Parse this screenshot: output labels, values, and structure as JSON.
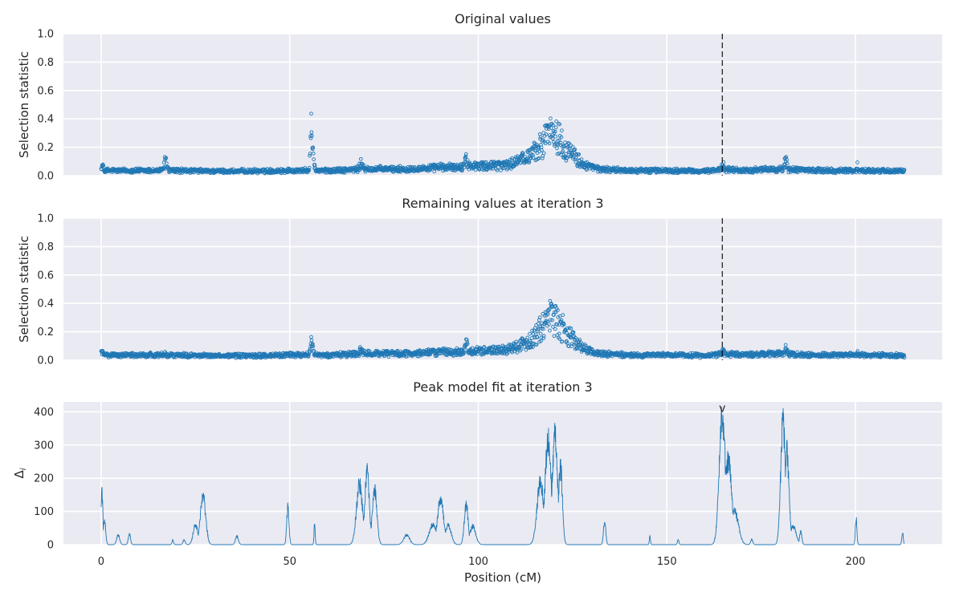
{
  "chart_data": [
    {
      "type": "scatter",
      "title": "Original values",
      "xlabel": "",
      "ylabel": "Selection statistic",
      "xlim": [
        -10,
        223
      ],
      "ylim": [
        0,
        1.0
      ],
      "yticks": [
        "0.0",
        "0.2",
        "0.4",
        "0.6",
        "0.8",
        "1.0"
      ],
      "xticks": [
        0,
        50,
        100,
        150,
        200
      ],
      "grid": true,
      "marker_color": "#1f77b4",
      "vline_x": 164.7,
      "baseline": [
        [
          0,
          0.03
        ],
        [
          10,
          0.03
        ],
        [
          20,
          0.03
        ],
        [
          30,
          0.025
        ],
        [
          40,
          0.025
        ],
        [
          50,
          0.03
        ],
        [
          60,
          0.03
        ],
        [
          70,
          0.04
        ],
        [
          80,
          0.04
        ],
        [
          90,
          0.05
        ],
        [
          100,
          0.06
        ],
        [
          108,
          0.07
        ],
        [
          113,
          0.12
        ],
        [
          117,
          0.22
        ],
        [
          119,
          0.28
        ],
        [
          121,
          0.27
        ],
        [
          124,
          0.16
        ],
        [
          128,
          0.07
        ],
        [
          132,
          0.04
        ],
        [
          140,
          0.03
        ],
        [
          150,
          0.03
        ],
        [
          160,
          0.025
        ],
        [
          165,
          0.04
        ],
        [
          170,
          0.03
        ],
        [
          180,
          0.04
        ],
        [
          190,
          0.03
        ],
        [
          200,
          0.03
        ],
        [
          213,
          0.025
        ]
      ],
      "bumps": [
        [
          0.3,
          0.09,
          0.4
        ],
        [
          17,
          0.14,
          0.6
        ],
        [
          55.6,
          0.49,
          0.2
        ],
        [
          55.8,
          0.35,
          0.3
        ],
        [
          56,
          0.22,
          0.5
        ],
        [
          69,
          0.12,
          0.7
        ],
        [
          90,
          0.09,
          1.0
        ],
        [
          96.8,
          0.17,
          0.5
        ],
        [
          119,
          0.44,
          1.5
        ],
        [
          164.9,
          0.12,
          0.4
        ],
        [
          181.5,
          0.14,
          0.5
        ],
        [
          200.5,
          0.1,
          0.2
        ]
      ],
      "x_range": [
        0,
        213
      ]
    },
    {
      "type": "scatter",
      "title": "Remaining values at iteration 3",
      "xlabel": "",
      "ylabel": "Selection statistic",
      "xlim": [
        -10,
        223
      ],
      "ylim": [
        0,
        1.0
      ],
      "yticks": [
        "0.0",
        "0.2",
        "0.4",
        "0.6",
        "0.8",
        "1.0"
      ],
      "xticks": [
        0,
        50,
        100,
        150,
        200
      ],
      "grid": true,
      "marker_color": "#1f77b4",
      "vline_x": 164.7,
      "baseline": [
        [
          0,
          0.03
        ],
        [
          10,
          0.03
        ],
        [
          20,
          0.03
        ],
        [
          30,
          0.025
        ],
        [
          40,
          0.025
        ],
        [
          50,
          0.03
        ],
        [
          60,
          0.03
        ],
        [
          70,
          0.04
        ],
        [
          80,
          0.04
        ],
        [
          90,
          0.05
        ],
        [
          100,
          0.06
        ],
        [
          108,
          0.07
        ],
        [
          113,
          0.12
        ],
        [
          117,
          0.22
        ],
        [
          119,
          0.28
        ],
        [
          121,
          0.27
        ],
        [
          124,
          0.16
        ],
        [
          128,
          0.07
        ],
        [
          132,
          0.04
        ],
        [
          140,
          0.03
        ],
        [
          150,
          0.03
        ],
        [
          160,
          0.025
        ],
        [
          165,
          0.04
        ],
        [
          170,
          0.03
        ],
        [
          180,
          0.04
        ],
        [
          190,
          0.03
        ],
        [
          200,
          0.03
        ],
        [
          213,
          0.025
        ]
      ],
      "bumps": [
        [
          0.3,
          0.09,
          0.4
        ],
        [
          17,
          0.06,
          0.6
        ],
        [
          55.8,
          0.17,
          0.5
        ],
        [
          69,
          0.12,
          0.7
        ],
        [
          90,
          0.09,
          1.0
        ],
        [
          96.8,
          0.16,
          0.5
        ],
        [
          119,
          0.44,
          1.5
        ],
        [
          164.9,
          0.11,
          0.4
        ],
        [
          181.5,
          0.13,
          0.5
        ],
        [
          200.5,
          0.1,
          0.2
        ]
      ],
      "x_range": [
        0,
        213
      ]
    },
    {
      "type": "line",
      "title": "Peak model fit at iteration 3",
      "xlabel": "Position (cM)",
      "ylabel": "Δ",
      "ylabel_sub": "i",
      "xlim": [
        -10,
        223
      ],
      "ylim": [
        0,
        430
      ],
      "yticks": [
        "0",
        "100",
        "200",
        "300",
        "400"
      ],
      "xticks": [
        "0",
        "50",
        "100",
        "150",
        "200"
      ],
      "grid": true,
      "line_color": "#1f77b4",
      "marker_text": "v",
      "marker_x": 164.7,
      "peaks": [
        [
          0.2,
          158,
          0.25
        ],
        [
          0.9,
          75,
          0.3
        ],
        [
          4.5,
          30,
          0.4
        ],
        [
          7.5,
          33,
          0.3
        ],
        [
          19,
          14,
          0.2
        ],
        [
          22,
          15,
          0.3
        ],
        [
          25,
          60,
          0.6
        ],
        [
          27,
          145,
          0.7
        ],
        [
          36,
          25,
          0.4
        ],
        [
          49.5,
          112,
          0.3
        ],
        [
          56.6,
          65,
          0.15
        ],
        [
          68.5,
          180,
          0.8
        ],
        [
          70.5,
          215,
          0.6
        ],
        [
          72.5,
          165,
          0.6
        ],
        [
          81,
          28,
          0.8
        ],
        [
          88,
          60,
          1.0
        ],
        [
          90,
          135,
          0.8
        ],
        [
          92,
          60,
          0.8
        ],
        [
          96.8,
          118,
          0.5
        ],
        [
          98.5,
          55,
          0.8
        ],
        [
          116.5,
          190,
          0.9
        ],
        [
          118.5,
          310,
          0.8
        ],
        [
          120.3,
          325,
          0.7
        ],
        [
          121.8,
          235,
          0.5
        ],
        [
          133.5,
          70,
          0.3
        ],
        [
          145.5,
          25,
          0.15
        ],
        [
          153,
          14,
          0.2
        ],
        [
          164.7,
          395,
          0.8
        ],
        [
          166.3,
          250,
          0.9
        ],
        [
          168,
          100,
          1.0
        ],
        [
          172.5,
          15,
          0.3
        ],
        [
          180.8,
          368,
          0.6
        ],
        [
          181.8,
          280,
          0.6
        ],
        [
          183.5,
          55,
          0.8
        ],
        [
          185.5,
          40,
          0.3
        ],
        [
          200.2,
          78,
          0.2
        ],
        [
          212.5,
          34,
          0.2
        ]
      ],
      "x_range": [
        0,
        213
      ]
    }
  ]
}
